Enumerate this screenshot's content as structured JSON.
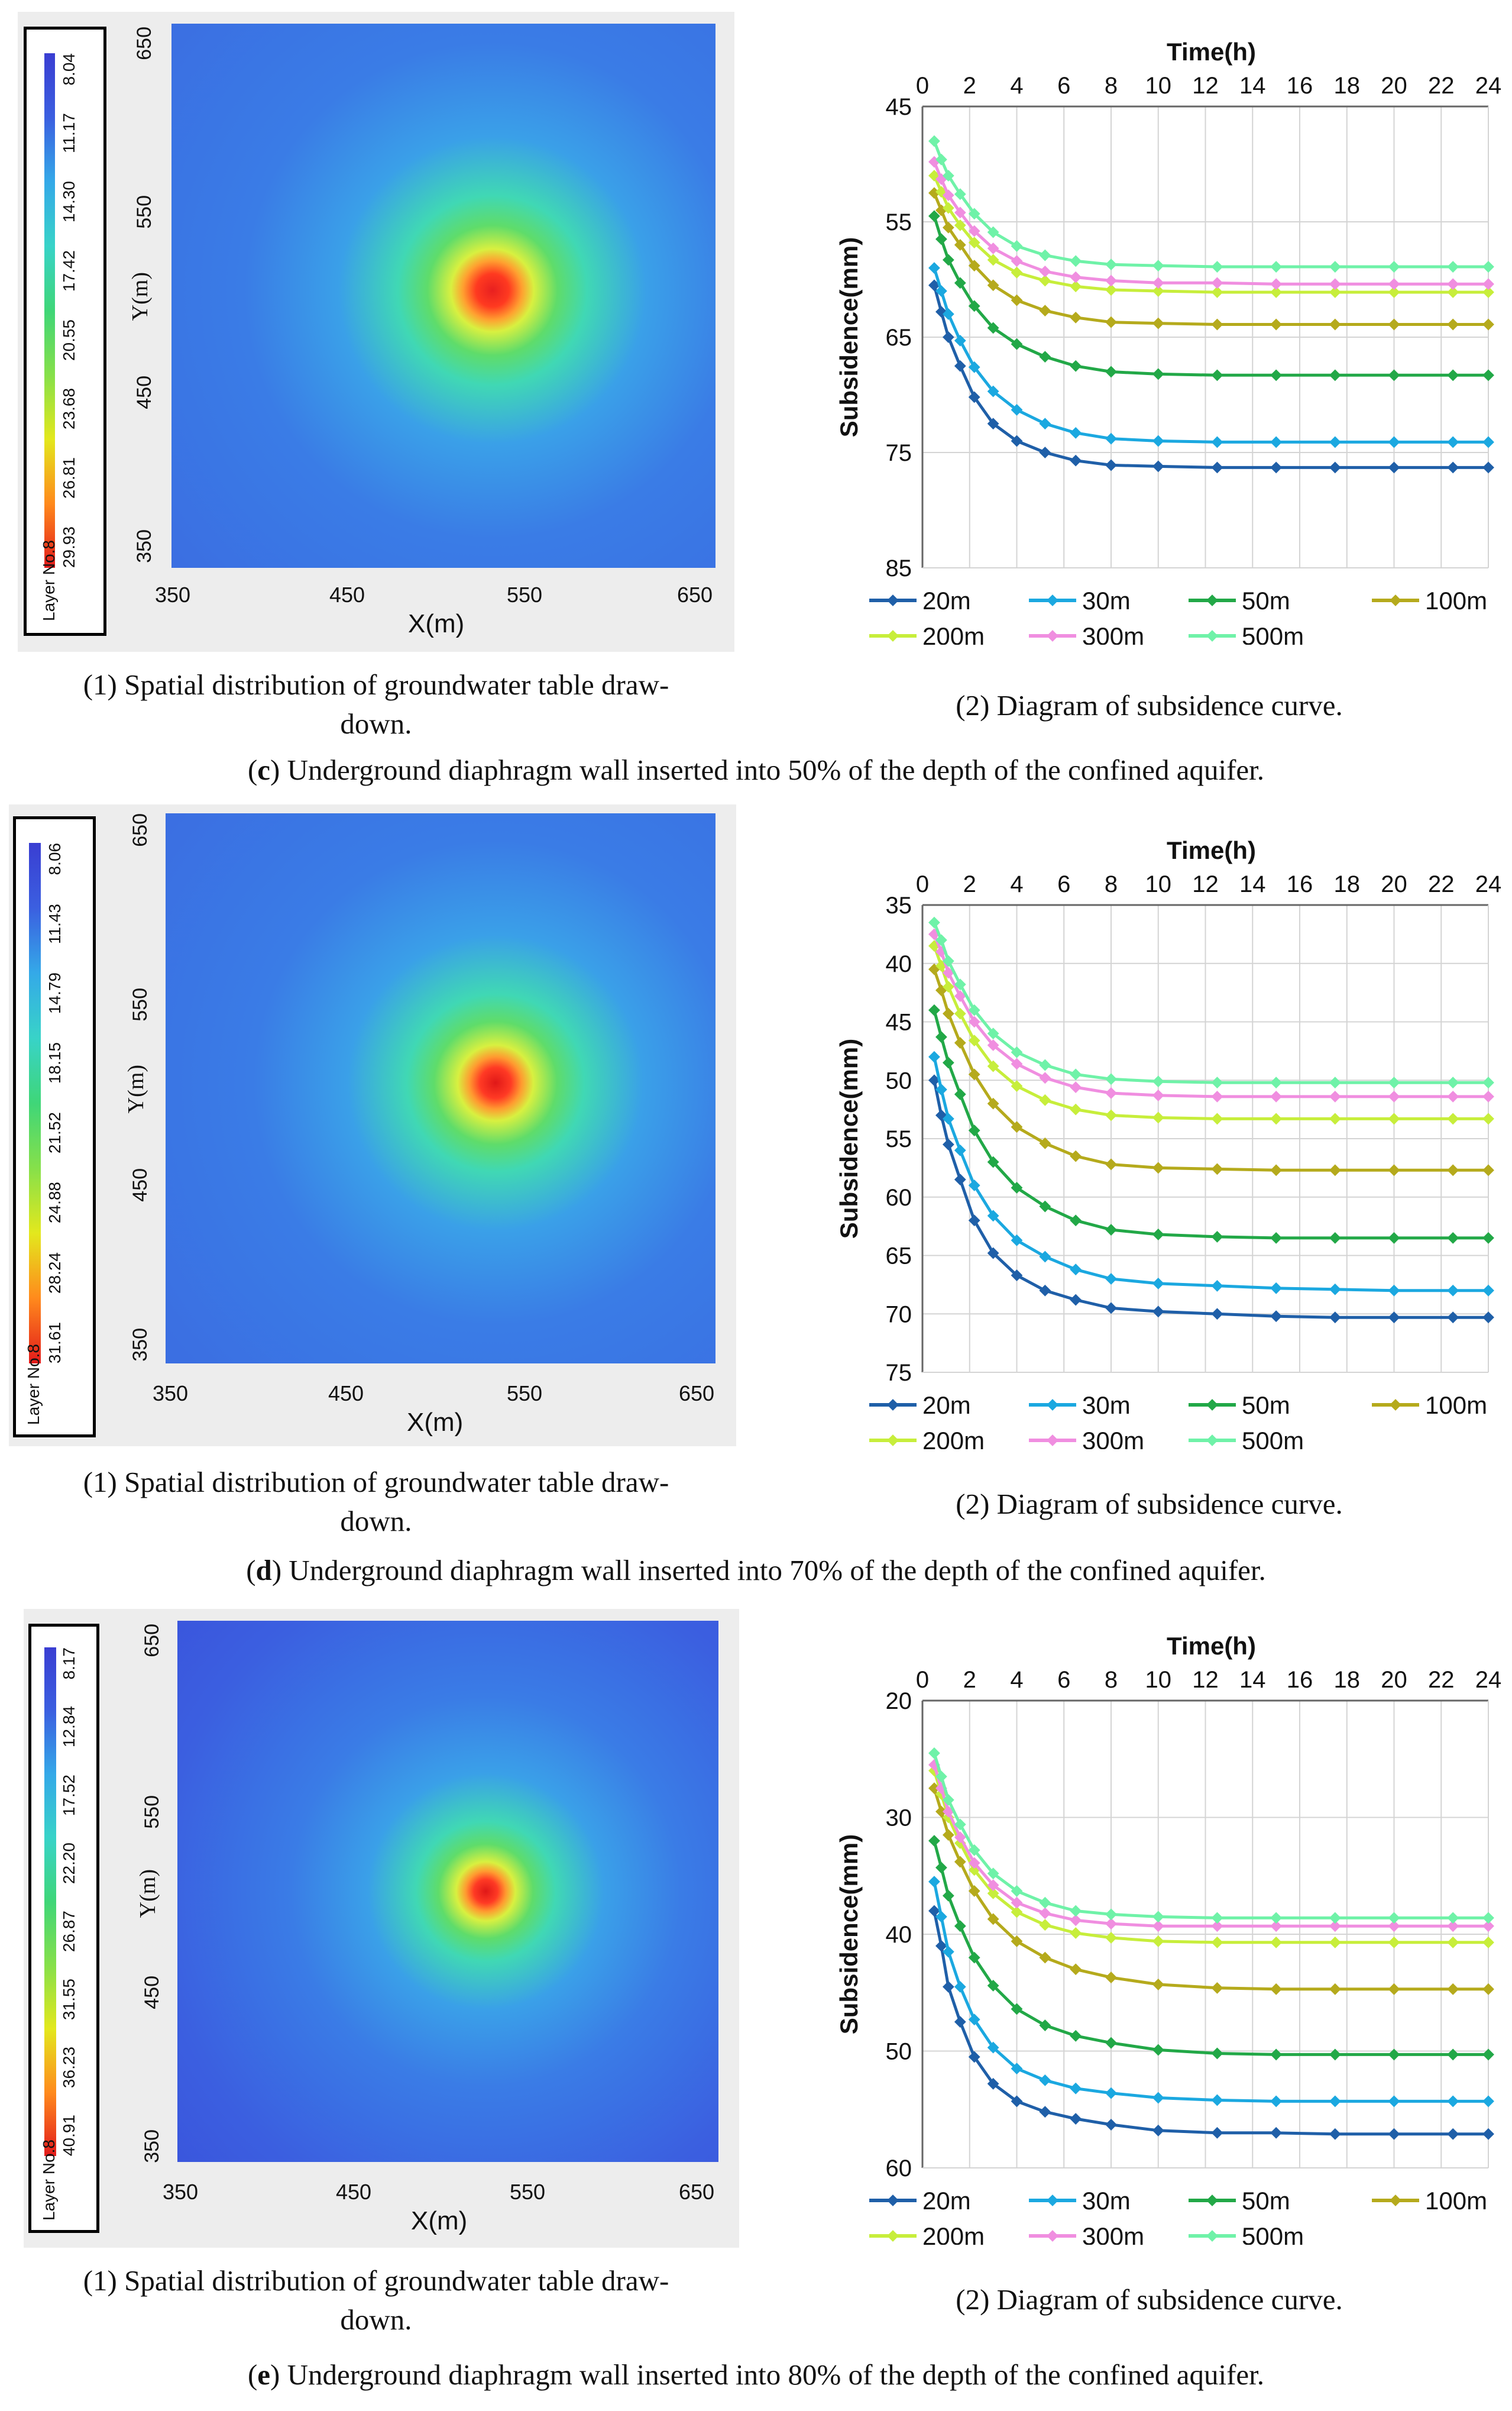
{
  "panels": [
    {
      "tag": "c",
      "caption": "Underground diaphragm wall inserted into 50% of the depth of the confined aquifer.",
      "map": {
        "caption": "(1) Spatial distribution of groundwater table draw-down.",
        "caption_line1": "(1) Spatial distribution of groundwater table draw-",
        "caption_line2": "down.",
        "layer_label": "Layer No.8",
        "legend_values": [
          "29.93",
          "26.81",
          "23.68",
          "20.55",
          "17.42",
          "14.30",
          "11.17",
          "8.04"
        ],
        "x_label": "X(m)",
        "y_label": "Y(m)",
        "x_ticks": [
          "350",
          "450",
          "550",
          "650"
        ],
        "y_ticks": [
          "650",
          "550",
          "450",
          "350"
        ]
      },
      "chart": {
        "caption": "(2) Diagram of subsidence curve.",
        "x_title": "Time(h)",
        "y_title": "Subsidence(mm)",
        "x_ticks": [
          "0",
          "2",
          "4",
          "6",
          "8",
          "10",
          "12",
          "14",
          "16",
          "18",
          "20",
          "22",
          "24"
        ],
        "y_ticks": [
          "45",
          "55",
          "65",
          "75",
          "85"
        ]
      }
    },
    {
      "tag": "d",
      "caption": "Underground diaphragm wall inserted into 70% of the depth of the confined aquifer.",
      "map": {
        "caption": "(1) Spatial distribution of groundwater table draw-down.",
        "caption_line1": "(1) Spatial distribution of groundwater table draw-",
        "caption_line2": "down.",
        "layer_label": "Layer No.8",
        "legend_values": [
          "31.61",
          "28.24",
          "24.88",
          "21.52",
          "18.15",
          "14.79",
          "11.43",
          "8.06"
        ],
        "x_label": "X(m)",
        "y_label": "Y(m)",
        "x_ticks": [
          "350",
          "450",
          "550",
          "650"
        ],
        "y_ticks": [
          "650",
          "550",
          "450",
          "350"
        ]
      },
      "chart": {
        "caption": "(2) Diagram of subsidence curve.",
        "x_title": "Time(h)",
        "y_title": "Subsidence(mm)",
        "x_ticks": [
          "0",
          "2",
          "4",
          "6",
          "8",
          "10",
          "12",
          "14",
          "16",
          "18",
          "20",
          "22",
          "24"
        ],
        "y_ticks": [
          "35",
          "40",
          "45",
          "50",
          "55",
          "60",
          "65",
          "70",
          "75"
        ]
      }
    },
    {
      "tag": "e",
      "caption": "Underground diaphragm wall inserted into 80% of the depth of the confined aquifer.",
      "map": {
        "caption": "(1) Spatial distribution of groundwater table draw-down.",
        "caption_line1": "(1) Spatial distribution of groundwater table draw-",
        "caption_line2": "down.",
        "layer_label": "Layer No.8",
        "legend_values": [
          "40.91",
          "36.23",
          "31.55",
          "26.87",
          "22.20",
          "17.52",
          "12.84",
          "8.17"
        ],
        "x_label": "X(m)",
        "y_label": "Y(m)",
        "x_ticks": [
          "350",
          "450",
          "550",
          "650"
        ],
        "y_ticks": [
          "650",
          "550",
          "450",
          "350"
        ]
      },
      "chart": {
        "caption": "(2) Diagram of subsidence curve.",
        "x_title": "Time(h)",
        "y_title": "Subsidence(mm)",
        "x_ticks": [
          "0",
          "2",
          "4",
          "6",
          "8",
          "10",
          "12",
          "14",
          "16",
          "18",
          "20",
          "22",
          "24"
        ],
        "y_ticks": [
          "20",
          "30",
          "40",
          "50",
          "60"
        ]
      }
    }
  ],
  "series_colors": {
    "20m": "#1f5fa8",
    "30m": "#1ba8e0",
    "50m": "#22a847",
    "100m": "#b5aa1c",
    "200m": "#c7ee3b",
    "300m": "#f08ee0",
    "500m": "#6ff2a8"
  },
  "chart_data": [
    {
      "type": "line",
      "title": "(2) Diagram of subsidence curve.",
      "xlabel": "Time(h)",
      "ylabel": "Subsidence(mm)",
      "xlim": [
        0,
        24
      ],
      "ylim": [
        45,
        85
      ],
      "y_inverted": true,
      "x": [
        0.5,
        0.8,
        1.1,
        1.6,
        2.2,
        3.0,
        4.0,
        5.2,
        6.5,
        8.0,
        10.0,
        12.5,
        15.0,
        17.5,
        20.0,
        22.5,
        24.0
      ],
      "series": [
        {
          "name": "20m",
          "values": [
            60.5,
            62.8,
            65.0,
            67.5,
            70.2,
            72.5,
            74.0,
            75.0,
            75.7,
            76.1,
            76.2,
            76.3,
            76.3,
            76.3,
            76.3,
            76.3,
            76.3
          ]
        },
        {
          "name": "30m",
          "values": [
            59.0,
            61.0,
            63.0,
            65.3,
            67.6,
            69.7,
            71.3,
            72.5,
            73.3,
            73.8,
            74.0,
            74.1,
            74.1,
            74.1,
            74.1,
            74.1,
            74.1
          ]
        },
        {
          "name": "50m",
          "values": [
            54.5,
            56.5,
            58.3,
            60.3,
            62.3,
            64.2,
            65.6,
            66.7,
            67.5,
            68.0,
            68.2,
            68.3,
            68.3,
            68.3,
            68.3,
            68.3,
            68.3
          ]
        },
        {
          "name": "100m",
          "values": [
            52.5,
            54.0,
            55.5,
            57.0,
            58.8,
            60.5,
            61.8,
            62.7,
            63.3,
            63.7,
            63.8,
            63.9,
            63.9,
            63.9,
            63.9,
            63.9,
            63.9
          ]
        },
        {
          "name": "200m",
          "values": [
            51.0,
            52.4,
            53.8,
            55.3,
            56.8,
            58.3,
            59.4,
            60.1,
            60.6,
            60.9,
            61.0,
            61.1,
            61.1,
            61.1,
            61.1,
            61.1,
            61.1
          ]
        },
        {
          "name": "300m",
          "values": [
            49.8,
            51.3,
            52.7,
            54.2,
            55.8,
            57.3,
            58.4,
            59.3,
            59.8,
            60.1,
            60.3,
            60.3,
            60.4,
            60.4,
            60.4,
            60.4,
            60.4
          ]
        },
        {
          "name": "500m",
          "values": [
            48.0,
            49.6,
            51.0,
            52.6,
            54.3,
            55.9,
            57.1,
            57.9,
            58.4,
            58.7,
            58.8,
            58.9,
            58.9,
            58.9,
            58.9,
            58.9,
            58.9
          ]
        }
      ]
    },
    {
      "type": "line",
      "title": "(2) Diagram of subsidence curve.",
      "xlabel": "Time(h)",
      "ylabel": "Subsidence(mm)",
      "xlim": [
        0,
        24
      ],
      "ylim": [
        35,
        75
      ],
      "y_inverted": true,
      "x": [
        0.5,
        0.8,
        1.1,
        1.6,
        2.2,
        3.0,
        4.0,
        5.2,
        6.5,
        8.0,
        10.0,
        12.5,
        15.0,
        17.5,
        20.0,
        22.5,
        24.0
      ],
      "series": [
        {
          "name": "20m",
          "values": [
            50.0,
            53.0,
            55.5,
            58.5,
            62.0,
            64.8,
            66.7,
            68.0,
            68.8,
            69.5,
            69.8,
            70.0,
            70.2,
            70.3,
            70.3,
            70.3,
            70.3
          ]
        },
        {
          "name": "30m",
          "values": [
            48.0,
            50.8,
            53.3,
            56.0,
            59.0,
            61.6,
            63.7,
            65.1,
            66.2,
            67.0,
            67.4,
            67.6,
            67.8,
            67.9,
            68.0,
            68.0,
            68.0
          ]
        },
        {
          "name": "50m",
          "values": [
            44.0,
            46.3,
            48.5,
            51.2,
            54.3,
            57.0,
            59.2,
            60.8,
            62.0,
            62.8,
            63.2,
            63.4,
            63.5,
            63.5,
            63.5,
            63.5,
            63.5
          ]
        },
        {
          "name": "100m",
          "values": [
            40.5,
            42.3,
            44.3,
            46.8,
            49.5,
            52.0,
            54.0,
            55.4,
            56.5,
            57.2,
            57.5,
            57.6,
            57.7,
            57.7,
            57.7,
            57.7,
            57.7
          ]
        },
        {
          "name": "200m",
          "values": [
            38.5,
            40.2,
            42.0,
            44.3,
            46.6,
            48.8,
            50.5,
            51.7,
            52.5,
            53.0,
            53.2,
            53.3,
            53.3,
            53.3,
            53.3,
            53.3,
            53.3
          ]
        },
        {
          "name": "300m",
          "values": [
            37.5,
            39.0,
            40.8,
            42.8,
            45.0,
            47.0,
            48.6,
            49.8,
            50.6,
            51.1,
            51.3,
            51.4,
            51.4,
            51.4,
            51.4,
            51.4,
            51.4
          ]
        },
        {
          "name": "500m",
          "values": [
            36.5,
            38.0,
            39.8,
            41.8,
            44.0,
            46.0,
            47.6,
            48.7,
            49.5,
            49.9,
            50.1,
            50.2,
            50.2,
            50.2,
            50.2,
            50.2,
            50.2
          ]
        }
      ]
    },
    {
      "type": "line",
      "title": "(2) Diagram of subsidence curve.",
      "xlabel": "Time(h)",
      "ylabel": "Subsidence(mm)",
      "xlim": [
        0,
        24
      ],
      "ylim": [
        20,
        60
      ],
      "y_inverted": true,
      "x": [
        0.5,
        0.8,
        1.1,
        1.6,
        2.2,
        3.0,
        4.0,
        5.2,
        6.5,
        8.0,
        10.0,
        12.5,
        15.0,
        17.5,
        20.0,
        22.5,
        24.0
      ],
      "series": [
        {
          "name": "20m",
          "values": [
            38.0,
            41.0,
            44.5,
            47.5,
            50.5,
            52.8,
            54.3,
            55.2,
            55.8,
            56.3,
            56.8,
            57.0,
            57.0,
            57.1,
            57.1,
            57.1,
            57.1
          ]
        },
        {
          "name": "30m",
          "values": [
            35.5,
            38.5,
            41.5,
            44.5,
            47.3,
            49.7,
            51.5,
            52.5,
            53.2,
            53.6,
            54.0,
            54.2,
            54.3,
            54.3,
            54.3,
            54.3,
            54.3
          ]
        },
        {
          "name": "50m",
          "values": [
            32.0,
            34.3,
            36.7,
            39.3,
            42.0,
            44.4,
            46.4,
            47.8,
            48.7,
            49.3,
            49.9,
            50.2,
            50.3,
            50.3,
            50.3,
            50.3,
            50.3
          ]
        },
        {
          "name": "100m",
          "values": [
            27.5,
            29.5,
            31.5,
            33.8,
            36.3,
            38.7,
            40.6,
            42.0,
            43.0,
            43.7,
            44.3,
            44.6,
            44.7,
            44.7,
            44.7,
            44.7,
            44.7
          ]
        },
        {
          "name": "200m",
          "values": [
            26.0,
            28.0,
            30.0,
            32.2,
            34.5,
            36.5,
            38.1,
            39.2,
            39.9,
            40.3,
            40.6,
            40.7,
            40.7,
            40.7,
            40.7,
            40.7,
            40.7
          ]
        },
        {
          "name": "300m",
          "values": [
            25.5,
            27.5,
            29.5,
            31.7,
            33.9,
            35.8,
            37.3,
            38.2,
            38.8,
            39.1,
            39.3,
            39.3,
            39.3,
            39.3,
            39.3,
            39.3,
            39.3
          ]
        },
        {
          "name": "500m",
          "values": [
            24.5,
            26.5,
            28.5,
            30.6,
            32.8,
            34.8,
            36.3,
            37.3,
            38.0,
            38.3,
            38.5,
            38.6,
            38.6,
            38.6,
            38.6,
            38.6,
            38.6
          ]
        }
      ]
    }
  ]
}
